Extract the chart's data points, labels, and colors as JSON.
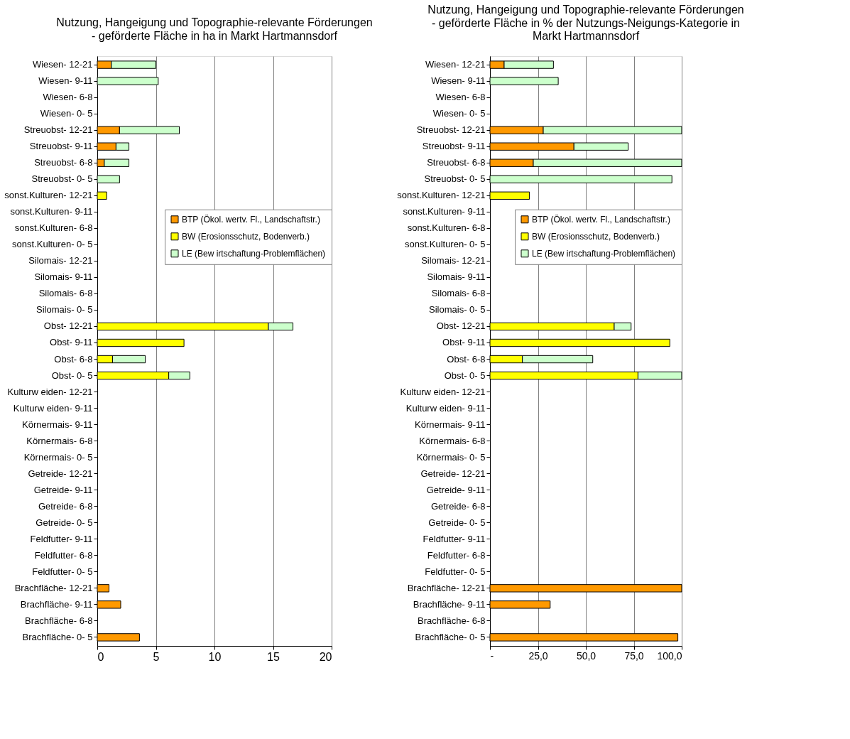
{
  "chart_data": [
    {
      "type": "bar",
      "orientation": "horizontal",
      "stacked": true,
      "title": "Nutzung, Hangeigung  und Topographie-relevante Förderungen",
      "subtitle": "- geförderte Fläche in ha in Markt Hartmannsdorf",
      "categories": [
        "Wiesen- 12-21",
        "Wiesen- 9-11",
        "Wiesen- 6-8",
        "Wiesen- 0- 5",
        "Streuobst- 12-21",
        "Streuobst- 9-11",
        "Streuobst- 6-8",
        "Streuobst- 0- 5",
        "sonst.Kulturen- 12-21",
        "sonst.Kulturen- 9-11",
        "sonst.Kulturen- 6-8",
        "sonst.Kulturen- 0- 5",
        "Silomais- 12-21",
        "Silomais- 9-11",
        "Silomais- 6-8",
        "Silomais- 0- 5",
        "Obst- 12-21",
        "Obst- 9-11",
        "Obst- 6-8",
        "Obst- 0- 5",
        "Kulturw eiden- 12-21",
        "Kulturw eiden- 9-11",
        "Körnermais- 9-11",
        "Körnermais- 6-8",
        "Körnermais- 0- 5",
        "Getreide- 12-21",
        "Getreide- 9-11",
        "Getreide- 6-8",
        "Getreide- 0- 5",
        "Feldfutter- 9-11",
        "Feldfutter- 6-8",
        "Feldfutter- 0- 5",
        "Brachfläche- 12-21",
        "Brachfläche- 9-11",
        "Brachfläche- 6-8",
        "Brachfläche- 0- 5"
      ],
      "series": [
        {
          "name": "BTP (Ökol. wertv. Fl., Landschaftstr.)",
          "color": "#ff9900",
          "values": [
            1.2,
            null,
            null,
            null,
            1.9,
            1.6,
            0.6,
            null,
            null,
            null,
            null,
            null,
            null,
            null,
            null,
            null,
            null,
            null,
            null,
            null,
            null,
            null,
            null,
            null,
            null,
            null,
            null,
            null,
            null,
            null,
            null,
            null,
            1.0,
            2.0,
            null,
            3.6
          ]
        },
        {
          "name": "BW (Erosionsschutz, Bodenverb.)",
          "color": "#ffff00",
          "values": [
            null,
            null,
            null,
            null,
            null,
            null,
            null,
            null,
            0.8,
            null,
            null,
            null,
            null,
            null,
            null,
            null,
            14.6,
            7.4,
            1.3,
            6.1,
            null,
            null,
            null,
            null,
            null,
            null,
            null,
            null,
            null,
            null,
            null,
            null,
            null,
            null,
            null,
            null
          ]
        },
        {
          "name": "LE (Bew irtschaftung-Problemflächen)",
          "color": "#ccffcc",
          "values": [
            3.8,
            5.2,
            null,
            null,
            5.1,
            1.1,
            2.1,
            1.9,
            null,
            null,
            null,
            null,
            null,
            null,
            null,
            null,
            2.1,
            null,
            2.8,
            1.8,
            null,
            null,
            null,
            null,
            null,
            null,
            null,
            null,
            null,
            null,
            null,
            null,
            null,
            null,
            null,
            null
          ]
        }
      ],
      "xlim": [
        0,
        20
      ],
      "xticks": [
        0,
        5,
        10,
        15,
        20
      ],
      "grid": "x",
      "legend": "right"
    },
    {
      "type": "bar",
      "orientation": "horizontal",
      "stacked": true,
      "title": "Nutzung, Hangeigung  und Topographie-relevante Förderungen",
      "subtitle": "- geförderte Fläche in % der Nutzungs-Neigungs-Kategorie in Markt Hartmannsdorf",
      "categories": [
        "Wiesen- 12-21",
        "Wiesen- 9-11",
        "Wiesen- 6-8",
        "Wiesen- 0- 5",
        "Streuobst- 12-21",
        "Streuobst- 9-11",
        "Streuobst- 6-8",
        "Streuobst- 0- 5",
        "sonst.Kulturen- 12-21",
        "sonst.Kulturen- 9-11",
        "sonst.Kulturen- 6-8",
        "sonst.Kulturen- 0- 5",
        "Silomais- 12-21",
        "Silomais- 9-11",
        "Silomais- 6-8",
        "Silomais- 0- 5",
        "Obst- 12-21",
        "Obst- 9-11",
        "Obst- 6-8",
        "Obst- 0- 5",
        "Kulturw eiden- 12-21",
        "Kulturw eiden- 9-11",
        "Körnermais- 9-11",
        "Körnermais- 6-8",
        "Körnermais- 0- 5",
        "Getreide- 12-21",
        "Getreide- 9-11",
        "Getreide- 6-8",
        "Getreide- 0- 5",
        "Feldfutter- 9-11",
        "Feldfutter- 6-8",
        "Feldfutter- 0- 5",
        "Brachfläche- 12-21",
        "Brachfläche- 9-11",
        "Brachfläche- 6-8",
        "Brachfläche- 0- 5"
      ],
      "series": [
        {
          "name": "BTP (Ökol. wertv. Fl., Landschaftstr.)",
          "color": "#ff9900",
          "values": [
            7.4,
            null,
            null,
            null,
            27.8,
            43.8,
            22.6,
            null,
            null,
            null,
            null,
            null,
            null,
            null,
            null,
            null,
            null,
            null,
            null,
            null,
            null,
            null,
            null,
            null,
            null,
            null,
            null,
            null,
            null,
            null,
            null,
            null,
            100,
            31.4,
            null,
            98.0
          ]
        },
        {
          "name": "BW (Erosionsschutz, Bodenverb.)",
          "color": "#ffff00",
          "values": [
            null,
            null,
            null,
            null,
            null,
            null,
            null,
            null,
            20.6,
            null,
            null,
            null,
            null,
            null,
            null,
            null,
            64.8,
            93.8,
            16.9,
            77.2,
            null,
            null,
            null,
            null,
            null,
            null,
            null,
            null,
            null,
            null,
            null,
            null,
            null,
            null,
            null,
            null
          ]
        },
        {
          "name": "LE (Bew irtschaftung-Problemflächen)",
          "color": "#ccffcc",
          "values": [
            25.7,
            35.6,
            null,
            null,
            72.2,
            28.3,
            77.4,
            94.9,
            null,
            null,
            null,
            null,
            null,
            null,
            null,
            null,
            8.8,
            null,
            36.7,
            22.8,
            null,
            null,
            null,
            null,
            null,
            null,
            null,
            null,
            null,
            null,
            null,
            null,
            null,
            null,
            null,
            null
          ]
        }
      ],
      "xlim": [
        0,
        100
      ],
      "xticks": [
        {
          "value": 0,
          "label": "-"
        },
        {
          "value": 25,
          "label": "25,0"
        },
        {
          "value": 50,
          "label": "50,0"
        },
        {
          "value": 75,
          "label": "75,0"
        },
        {
          "value": 100,
          "label": "100,0"
        }
      ],
      "grid": "x",
      "legend": "right"
    }
  ]
}
